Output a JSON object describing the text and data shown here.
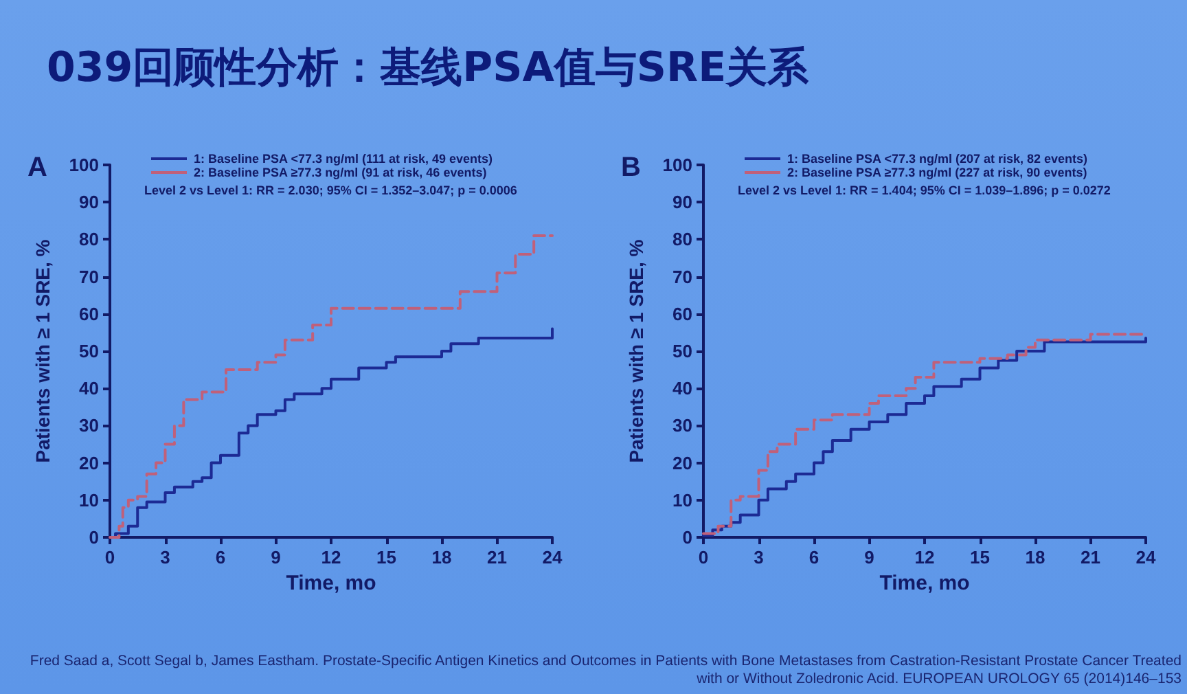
{
  "chart_data": [
    {
      "type": "step",
      "title": "039回顾性分析：基线PSA值与SRE关系",
      "xlabel": "Time, mo",
      "ylabel": "Patients with ≥ 1 SRE, %",
      "annotations": [
        "A",
        "Level 2 vs Level 1: RR = 2.030; 95% CI = 1.352–3.047; p = 0.0006"
      ],
      "xlim": [
        0,
        24
      ],
      "xticks": [
        0,
        3,
        6,
        9,
        12,
        15,
        18,
        21,
        24
      ],
      "ylim": [
        0,
        100
      ],
      "yticks": [
        0,
        10,
        20,
        30,
        40,
        50,
        60,
        70,
        80,
        90,
        100
      ],
      "grid": false,
      "legend": "top left",
      "marker": "none",
      "series": [
        {
          "name": "1: Baseline PSA <77.3 ng/ml (111 at risk, 49 events)",
          "color": "#1c2a94",
          "line_style": "solid",
          "x": [
            0,
            0.3,
            1,
            1.5,
            2,
            3,
            3.5,
            4.5,
            5,
            5.5,
            6,
            7,
            7.5,
            8,
            9,
            9.5,
            10,
            11.5,
            12,
            13.5,
            15,
            15.5,
            18,
            18.5,
            20,
            24,
            24
          ],
          "values": [
            0,
            1,
            3,
            8,
            9.5,
            12,
            13.5,
            15,
            16,
            20,
            22,
            28,
            30,
            33,
            34,
            37,
            38.5,
            40,
            42.5,
            45.5,
            47,
            48.5,
            50,
            52,
            53.5,
            53.5,
            56
          ]
        },
        {
          "name": "2: Baseline PSA ≥77.3 ng/ml (91 at risk, 46 events)",
          "color": "#c0607a",
          "line_style": "dashed",
          "x": [
            0,
            0.5,
            0.7,
            1,
            1.5,
            2,
            2.5,
            3,
            3.5,
            4,
            5,
            6.3,
            8,
            9,
            9.5,
            11,
            12,
            19,
            21,
            22,
            23,
            24
          ],
          "values": [
            0,
            3,
            8,
            10,
            11,
            17,
            20,
            25,
            30,
            37,
            39,
            45,
            47,
            49,
            53,
            57,
            61.5,
            66,
            71,
            76,
            81,
            81
          ]
        }
      ]
    },
    {
      "type": "step",
      "xlabel": "Time, mo",
      "ylabel": "Patients with ≥ 1 SRE, %",
      "annotations": [
        "B",
        "Level 2 vs Level 1: RR = 1.404; 95% CI = 1.039–1.896; p = 0.0272",
        "Fred Saad a, Scott Segal b, James Eastham. Prostate-Specific Antigen Kinetics and Outcomes in Patients with Bone Metastases from Castration-Resistant Prostate Cancer Treated with or Without Zoledronic Acid. EUROPEAN UROLOGY 65 (2014)146–153"
      ],
      "xlim": [
        0,
        24
      ],
      "xticks": [
        0,
        3,
        6,
        9,
        12,
        15,
        18,
        21,
        24
      ],
      "ylim": [
        0,
        100
      ],
      "yticks": [
        0,
        10,
        20,
        30,
        40,
        50,
        60,
        70,
        80,
        90,
        100
      ],
      "grid": false,
      "legend": "top left",
      "marker": "none",
      "series": [
        {
          "name": "1: Baseline PSA <77.3 ng/ml (207 at risk, 82 events)",
          "color": "#1c2a94",
          "line_style": "solid",
          "x": [
            0,
            0.5,
            1,
            1.5,
            2,
            3,
            3.5,
            4.5,
            5,
            6,
            6.5,
            7,
            8,
            9,
            10,
            11,
            12,
            12.5,
            14,
            15,
            16,
            17,
            18.5,
            24
          ],
          "values": [
            0.5,
            2,
            3,
            4,
            6,
            10,
            13,
            15,
            17,
            20,
            23,
            26,
            29,
            31,
            33,
            36,
            38,
            40.5,
            42.5,
            45.5,
            47.5,
            50,
            52.5,
            53.5
          ]
        },
        {
          "name": "2: Baseline PSA ≥77.3 ng/ml (227 at risk, 90 events)",
          "color": "#c0607a",
          "line_style": "dashed",
          "x": [
            0,
            0.8,
            1.5,
            2,
            3,
            3.5,
            4,
            5,
            6,
            7,
            9,
            9.5,
            11,
            11.5,
            12.5,
            15,
            16.5,
            17.5,
            18,
            21,
            24
          ],
          "values": [
            1,
            3,
            10,
            11,
            18,
            23,
            25,
            29,
            31.5,
            33,
            36,
            38,
            40,
            43,
            47,
            48,
            49,
            51,
            53,
            54.5,
            54.5
          ]
        }
      ]
    }
  ]
}
